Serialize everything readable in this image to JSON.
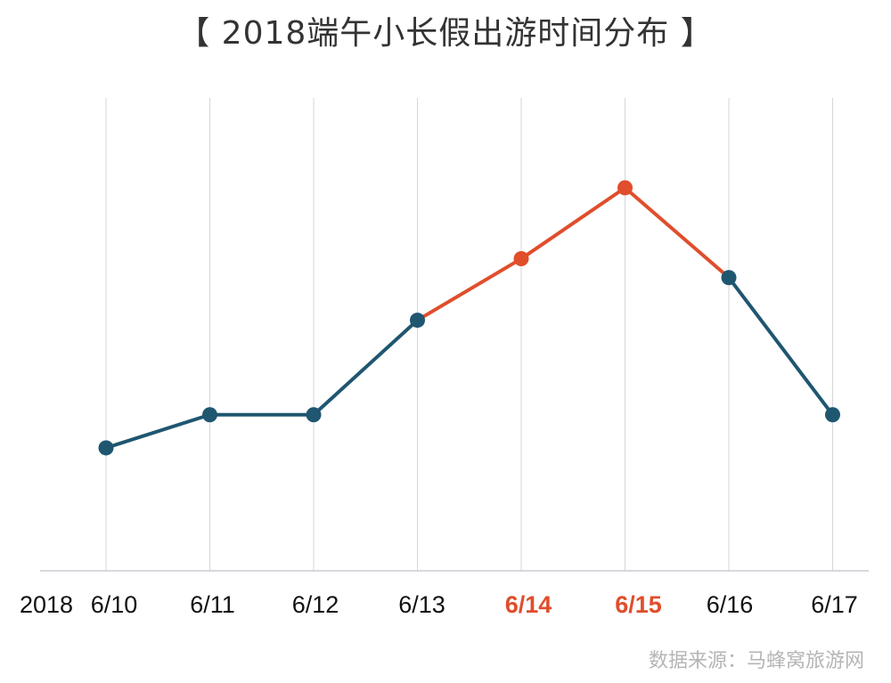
{
  "chart_data": {
    "type": "line",
    "title": "【 2018端午小长假出游时间分布 】",
    "year_label": "2018",
    "categories": [
      "6/10",
      "6/11",
      "6/12",
      "6/13",
      "6/14",
      "6/15",
      "6/16",
      "6/17"
    ],
    "values": [
      26,
      33,
      33,
      53,
      66,
      81,
      62,
      33
    ],
    "highlight_categories": [
      "6/14",
      "6/15"
    ],
    "ylim": [
      0,
      100
    ],
    "grid": "vertical",
    "colors": {
      "line": "#1f5670",
      "highlight": "#e04e2c",
      "grid": "#d4d6dc",
      "axis": "#c8cbd2",
      "tick": "#111111"
    }
  },
  "source": "数据来源：马蜂窝旅游网"
}
